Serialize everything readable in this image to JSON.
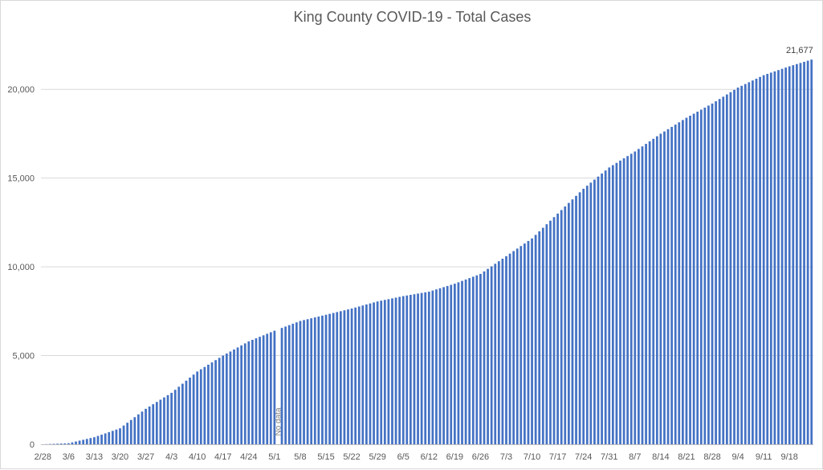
{
  "chart_data": {
    "type": "bar",
    "title": "King County COVID-19 - Total Cases",
    "xlabel": "",
    "ylabel": "",
    "ylim": [
      0,
      22500
    ],
    "grid": true,
    "bar_color": "#4472c4",
    "x_start": "2/28",
    "x_end": "9/24",
    "x_ticks": [
      "2/28",
      "3/6",
      "3/13",
      "3/20",
      "3/27",
      "4/3",
      "4/10",
      "4/17",
      "4/24",
      "5/1",
      "5/8",
      "5/15",
      "5/22",
      "5/29",
      "6/5",
      "6/12",
      "6/19",
      "6/26",
      "7/3",
      "7/10",
      "7/17",
      "7/24",
      "7/31",
      "8/7",
      "8/14",
      "8/21",
      "8/28",
      "9/4",
      "9/11",
      "9/18"
    ],
    "y_ticks": [
      "0",
      "5,000",
      "10,000",
      "15,000",
      "20,000"
    ],
    "y_tick_values": [
      0,
      5000,
      10000,
      15000,
      20000
    ],
    "anchors": [
      {
        "x": "2/28",
        "y": 0
      },
      {
        "x": "3/6",
        "y": 60
      },
      {
        "x": "3/13",
        "y": 400
      },
      {
        "x": "3/20",
        "y": 900
      },
      {
        "x": "3/27",
        "y": 2000
      },
      {
        "x": "4/3",
        "y": 2900
      },
      {
        "x": "4/10",
        "y": 4100
      },
      {
        "x": "4/17",
        "y": 5000
      },
      {
        "x": "4/24",
        "y": 5800
      },
      {
        "x": "5/1",
        "y": 6400
      },
      {
        "x": "5/8",
        "y": 6950
      },
      {
        "x": "5/15",
        "y": 7300
      },
      {
        "x": "5/22",
        "y": 7650
      },
      {
        "x": "5/29",
        "y": 8050
      },
      {
        "x": "6/5",
        "y": 8350
      },
      {
        "x": "6/12",
        "y": 8600
      },
      {
        "x": "6/19",
        "y": 9050
      },
      {
        "x": "6/26",
        "y": 9600
      },
      {
        "x": "7/3",
        "y": 10600
      },
      {
        "x": "7/10",
        "y": 11600
      },
      {
        "x": "7/17",
        "y": 13000
      },
      {
        "x": "7/24",
        "y": 14400
      },
      {
        "x": "7/31",
        "y": 15600
      },
      {
        "x": "8/7",
        "y": 16500
      },
      {
        "x": "8/14",
        "y": 17500
      },
      {
        "x": "8/21",
        "y": 18400
      },
      {
        "x": "8/28",
        "y": 19200
      },
      {
        "x": "9/4",
        "y": 20100
      },
      {
        "x": "9/11",
        "y": 20800
      },
      {
        "x": "9/18",
        "y": 21300
      },
      {
        "x": "9/24",
        "y": 21677
      }
    ],
    "missing": [
      "5/2"
    ],
    "missing_label": "No data",
    "last_value_label": "21,677"
  }
}
